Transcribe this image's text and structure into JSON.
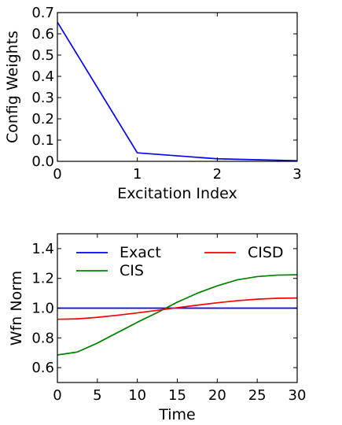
{
  "chart_data": [
    {
      "type": "line",
      "xlabel": "Excitation Index",
      "ylabel": "Config Weights",
      "xlim": [
        0,
        3
      ],
      "ylim": [
        0,
        0.7
      ],
      "xticks": [
        "0",
        "1",
        "2",
        "3"
      ],
      "yticks": [
        "0.0",
        "0.1",
        "0.2",
        "0.3",
        "0.4",
        "0.5",
        "0.6",
        "0.7"
      ],
      "grid": false,
      "series": [
        {
          "color": "#0000ff",
          "x": [
            0,
            1,
            2,
            3
          ],
          "y": [
            0.655,
            0.04,
            0.012,
            0.003
          ]
        }
      ]
    },
    {
      "type": "line",
      "xlabel": "Time",
      "ylabel": "Wfn Norm",
      "xlim": [
        0,
        30
      ],
      "ylim": [
        0.5,
        1.5
      ],
      "xticks": [
        "0",
        "5",
        "10",
        "15",
        "20",
        "25",
        "30"
      ],
      "yticks": [
        "0.6",
        "0.8",
        "1.0",
        "1.2",
        "1.4"
      ],
      "grid": false,
      "legend_position": "upper",
      "series": [
        {
          "name": "Exact",
          "color": "#0000ff",
          "x": [
            0,
            5,
            10,
            15,
            20,
            25,
            30
          ],
          "y": [
            1.0,
            1.0,
            1.0,
            1.0,
            1.0,
            1.0,
            1.0
          ]
        },
        {
          "name": "CIS",
          "color": "#008000",
          "x": [
            0,
            2.5,
            5,
            7.5,
            10,
            12.5,
            15,
            17.5,
            20,
            22.5,
            25,
            27.5,
            30
          ],
          "y": [
            0.685,
            0.705,
            0.765,
            0.835,
            0.905,
            0.97,
            1.04,
            1.1,
            1.15,
            1.19,
            1.212,
            1.222,
            1.224
          ]
        },
        {
          "name": "CISD",
          "color": "#ff0000",
          "x": [
            0,
            2.5,
            5,
            7.5,
            10,
            12.5,
            15,
            17.5,
            20,
            22.5,
            25,
            27.5,
            30
          ],
          "y": [
            0.925,
            0.928,
            0.938,
            0.952,
            0.968,
            0.985,
            1.003,
            1.02,
            1.036,
            1.05,
            1.06,
            1.066,
            1.068
          ]
        }
      ]
    }
  ]
}
